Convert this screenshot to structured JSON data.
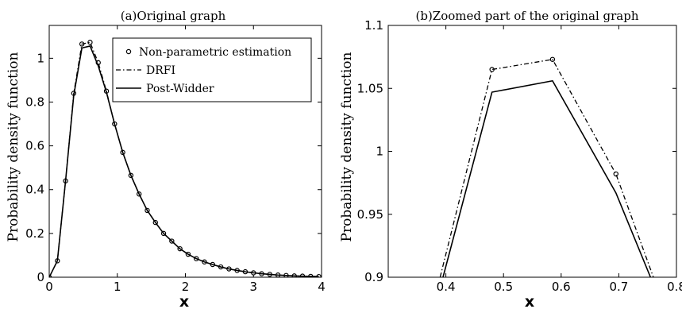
{
  "chart_data": [
    {
      "type": "line",
      "title": "(a)Original graph",
      "xlabel": "x",
      "ylabel": "Probability density function",
      "xlim": [
        0,
        4
      ],
      "ylim": [
        0,
        1.15
      ],
      "xticks": [
        "0",
        "1",
        "2",
        "3",
        "4"
      ],
      "yticks": [
        "0",
        "0.2",
        "0.4",
        "0.6",
        "0.8",
        "1"
      ],
      "grid": false,
      "legend": {
        "placement": "top-right",
        "entries": [
          "Non-parametric estimation",
          "DRFI",
          "Post-Widder"
        ]
      },
      "x": [
        0,
        0.12,
        0.24,
        0.36,
        0.48,
        0.6,
        0.72,
        0.84,
        0.96,
        1.08,
        1.2,
        1.32,
        1.44,
        1.56,
        1.68,
        1.8,
        1.92,
        2.04,
        2.16,
        2.28,
        2.4,
        2.52,
        2.64,
        2.76,
        2.88,
        3.0,
        3.12,
        3.24,
        3.36,
        3.48,
        3.6,
        3.72,
        3.84,
        3.96
      ],
      "series": [
        {
          "name": "Non-parametric estimation",
          "style": "markers",
          "values": [
            0,
            0.075,
            0.44,
            0.84,
            1.065,
            1.073,
            0.98,
            0.85,
            0.7,
            0.57,
            0.465,
            0.38,
            0.305,
            0.25,
            0.2,
            0.165,
            0.13,
            0.105,
            0.085,
            0.07,
            0.058,
            0.047,
            0.038,
            0.031,
            0.025,
            0.02,
            0.016,
            0.013,
            0.01,
            0.008,
            0.006,
            0.005,
            0.004,
            0.003
          ]
        },
        {
          "name": "DRFI",
          "style": "dash-dot",
          "values": [
            0,
            0.075,
            0.44,
            0.84,
            1.065,
            1.073,
            0.98,
            0.85,
            0.7,
            0.57,
            0.465,
            0.38,
            0.305,
            0.25,
            0.2,
            0.165,
            0.13,
            0.105,
            0.085,
            0.07,
            0.058,
            0.047,
            0.038,
            0.031,
            0.025,
            0.02,
            0.016,
            0.013,
            0.01,
            0.008,
            0.006,
            0.005,
            0.004,
            0.003
          ]
        },
        {
          "name": "Post-Widder",
          "style": "solid",
          "values": [
            0,
            0.075,
            0.44,
            0.83,
            1.047,
            1.056,
            0.965,
            0.845,
            0.7,
            0.57,
            0.465,
            0.38,
            0.305,
            0.25,
            0.2,
            0.165,
            0.13,
            0.105,
            0.085,
            0.07,
            0.058,
            0.047,
            0.038,
            0.031,
            0.025,
            0.02,
            0.016,
            0.013,
            0.01,
            0.008,
            0.006,
            0.005,
            0.004,
            0.003
          ]
        }
      ]
    },
    {
      "type": "line",
      "title": "(b)Zoomed part of the original graph",
      "xlabel": "x",
      "ylabel": "Probability density function",
      "xlim": [
        0.3,
        0.8
      ],
      "ylim": [
        0.9,
        1.1
      ],
      "xticks": [
        "0.4",
        "0.5",
        "0.6",
        "0.7",
        "0.8"
      ],
      "yticks": [
        "0.9",
        "0.95",
        "1",
        "1.05",
        "1.1"
      ],
      "grid": false,
      "series": [
        {
          "name": "Non-parametric estimation",
          "style": "markers",
          "x": [
            0.48,
            0.585,
            0.695
          ],
          "values": [
            1.065,
            1.073,
            0.982
          ]
        },
        {
          "name": "DRFI",
          "style": "dash-dot",
          "x": [
            0.39,
            0.48,
            0.585,
            0.695,
            0.76
          ],
          "values": [
            0.9,
            1.065,
            1.073,
            0.982,
            0.9
          ]
        },
        {
          "name": "Post-Widder",
          "style": "solid",
          "x": [
            0.395,
            0.48,
            0.585,
            0.695,
            0.755
          ],
          "values": [
            0.9,
            1.047,
            1.056,
            0.967,
            0.9
          ]
        }
      ]
    }
  ]
}
